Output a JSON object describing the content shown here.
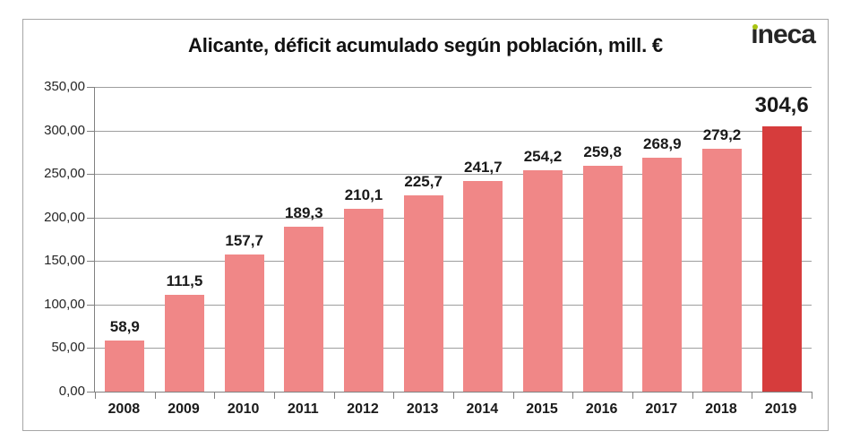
{
  "header": {
    "logo": {
      "text": "ineca",
      "text_color": "#262626",
      "dot_color": "#a9c411"
    }
  },
  "chart_data": {
    "type": "bar",
    "title": "Alicante, déficit acumulado según población, mill. €",
    "categories": [
      "2008",
      "2009",
      "2010",
      "2011",
      "2012",
      "2013",
      "2014",
      "2015",
      "2016",
      "2017",
      "2018",
      "2019"
    ],
    "values": [
      58.9,
      111.5,
      157.7,
      189.3,
      210.1,
      225.7,
      241.7,
      254.2,
      259.8,
      268.9,
      279.2,
      304.6
    ],
    "value_labels": [
      "58,9",
      "111,5",
      "157,7",
      "189,3",
      "210,1",
      "225,7",
      "241,7",
      "254,2",
      "259,8",
      "268,9",
      "279,2",
      "304,6"
    ],
    "xlabel": "",
    "ylabel": "",
    "ylim": [
      0,
      350
    ],
    "ytick_step": 50,
    "ytick_labels": [
      "0,00",
      "50,00",
      "100,00",
      "150,00",
      "200,00",
      "250,00",
      "300,00",
      "350,00"
    ],
    "grid": true,
    "legend_position": "none",
    "bar_color": "#f08787",
    "highlight_color": "#d63c3c",
    "highlight_index": 11,
    "gridline_color": "#9e9e9e",
    "axis_color": "#808080"
  }
}
